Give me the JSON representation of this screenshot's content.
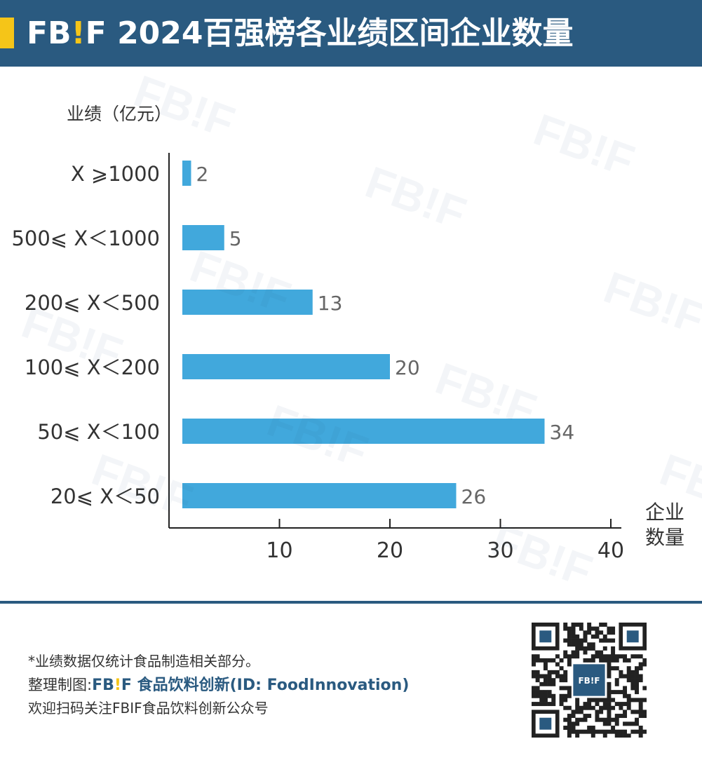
{
  "header": {
    "brand_prefix": "FB",
    "brand_bang": "!",
    "brand_suffix": "F",
    "title": "2024百强榜各业绩区间企业数量",
    "bg_color": "#2a5a80",
    "accent_color": "#f5c518"
  },
  "watermark": {
    "text": "FB!F"
  },
  "chart_data": {
    "type": "bar",
    "orientation": "horizontal",
    "ylabel": "业绩（亿元）",
    "xlabel_line1": "企业",
    "xlabel_line2": "数量",
    "categories": [
      "X ⩾1000",
      "500⩽ X＜1000",
      "200⩽ X＜500",
      "100⩽ X＜200",
      "50⩽ X＜100",
      "20⩽ X＜50"
    ],
    "values": [
      2,
      5,
      13,
      20,
      34,
      26
    ],
    "xlim": [
      0,
      40
    ],
    "xticks": [
      10,
      20,
      30,
      40
    ],
    "grid": false,
    "bar_color": "#41a8dc",
    "axis_color": "#222222"
  },
  "footer": {
    "footnote": "*业绩数据仅统计食品制造相关部分。",
    "credit_label": "整理制图:",
    "credit_brand_prefix": "FB",
    "credit_brand_bang": "!",
    "credit_brand_suffix": "F",
    "credit_name": " 食品饮料创新(ID: FoodInnovation)",
    "follow": "欢迎扫码关注FBIF食品饮料创新公众号",
    "qr_center_label": "FB!F"
  }
}
